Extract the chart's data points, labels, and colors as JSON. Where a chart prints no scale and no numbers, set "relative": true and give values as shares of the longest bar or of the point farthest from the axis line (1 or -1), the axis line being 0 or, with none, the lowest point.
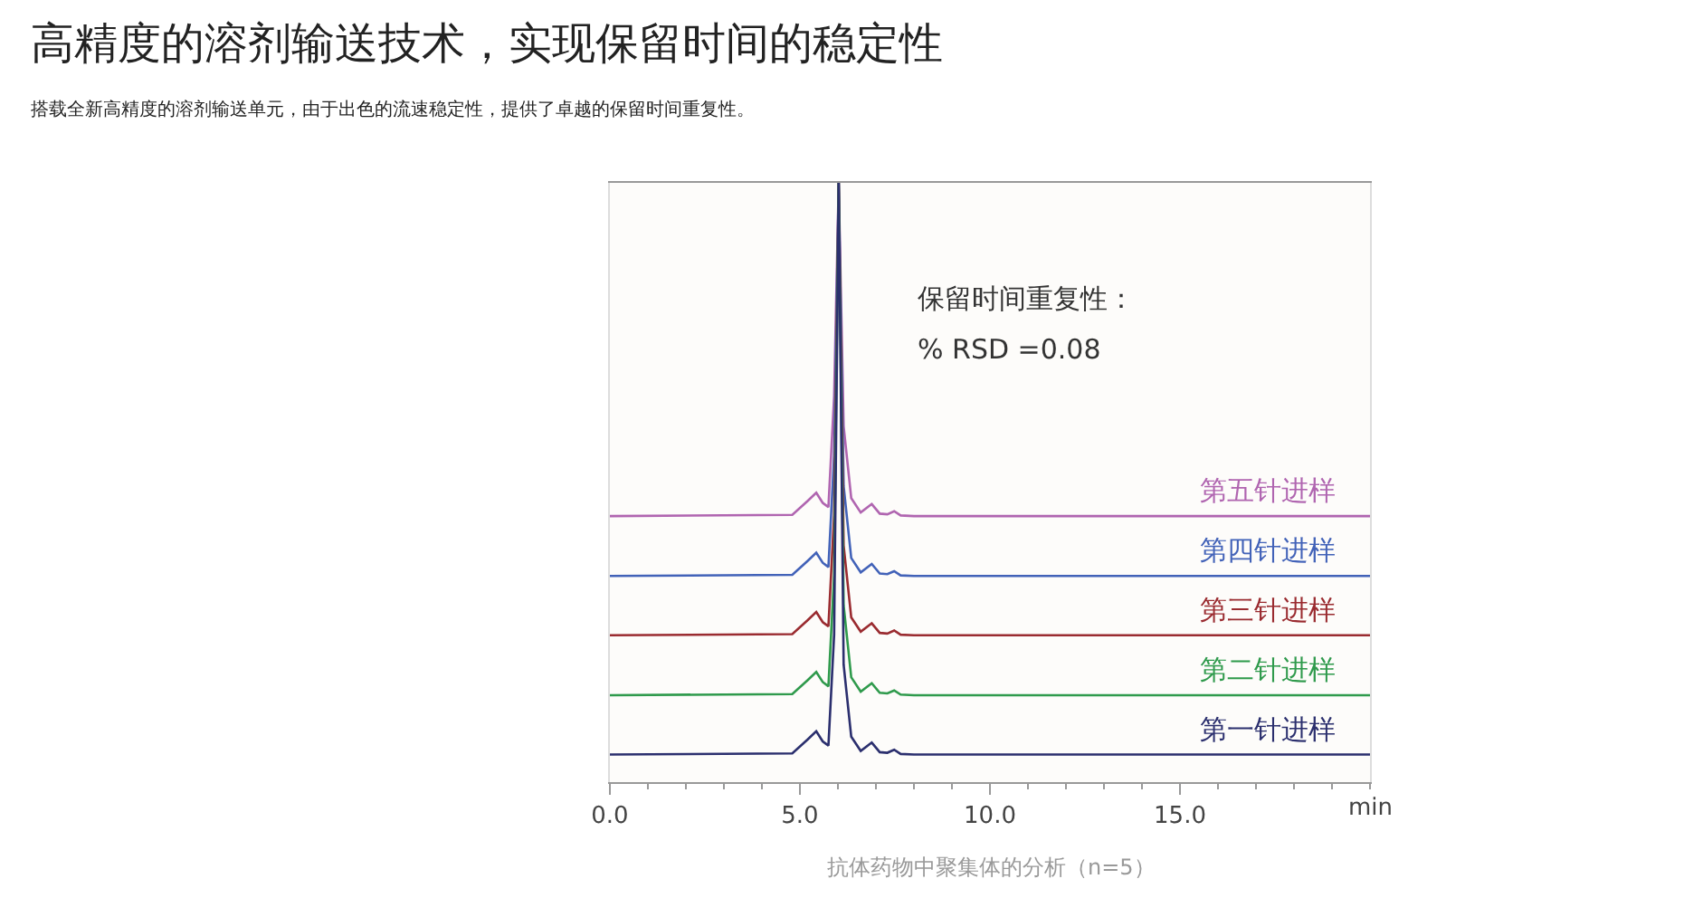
{
  "chart_data": {
    "type": "line",
    "title": "高精度的溶剂输送技术，实现保留时间的稳定性",
    "subtitle": "搭载全新高精度的溶剂输送单元，由于出色的流速稳定性，提供了卓越的保留时间重复性。",
    "xlabel": "min",
    "relative": true,
    "xlim": [
      0,
      20
    ],
    "xticks": [
      {
        "value": 0,
        "label": "0.0"
      },
      {
        "value": 5,
        "label": "5.0"
      },
      {
        "value": 10,
        "label": "10.0"
      },
      {
        "value": 15,
        "label": "15.0"
      }
    ],
    "marker": "none",
    "line_style": "solid",
    "x": [
      0,
      4.8,
      5.2,
      5.43,
      5.6,
      5.75,
      5.9,
      6.02,
      6.15,
      6.35,
      6.6,
      6.89,
      7.1,
      7.3,
      7.48,
      7.65,
      8,
      20
    ],
    "series": [
      {
        "name": "第五针进样",
        "color": "#b065b0",
        "values": [
          0.444,
          0.446,
          0.469,
          0.483,
          0.466,
          0.459,
          0.644,
          1,
          0.594,
          0.474,
          0.45,
          0.464,
          0.448,
          0.447,
          0.452,
          0.445,
          0.444,
          0.444
        ]
      },
      {
        "name": "第四针进样",
        "color": "#4262b8",
        "values": [
          0.344,
          0.346,
          0.369,
          0.383,
          0.366,
          0.359,
          0.544,
          1,
          0.494,
          0.374,
          0.35,
          0.364,
          0.348,
          0.347,
          0.352,
          0.345,
          0.344,
          0.344
        ]
      },
      {
        "name": "第三针进样",
        "color": "#9a2b30",
        "values": [
          0.245,
          0.247,
          0.27,
          0.284,
          0.267,
          0.26,
          0.445,
          1,
          0.395,
          0.275,
          0.251,
          0.265,
          0.249,
          0.248,
          0.253,
          0.246,
          0.245,
          0.245
        ]
      },
      {
        "name": "第二针进样",
        "color": "#2f9a4c",
        "values": [
          0.145,
          0.147,
          0.17,
          0.184,
          0.167,
          0.16,
          0.345,
          1,
          0.295,
          0.175,
          0.151,
          0.165,
          0.149,
          0.148,
          0.153,
          0.146,
          0.145,
          0.145
        ]
      },
      {
        "name": "第一针进样",
        "color": "#2b2f6e",
        "values": [
          0.046,
          0.048,
          0.071,
          0.085,
          0.068,
          0.061,
          0.246,
          1,
          0.196,
          0.076,
          0.052,
          0.066,
          0.05,
          0.049,
          0.054,
          0.047,
          0.046,
          0.046
        ]
      }
    ],
    "annotations": [
      "保留时间重复性：",
      "% RSD =0.08",
      "抗体药物中聚集体的分析（n=5）"
    ]
  }
}
